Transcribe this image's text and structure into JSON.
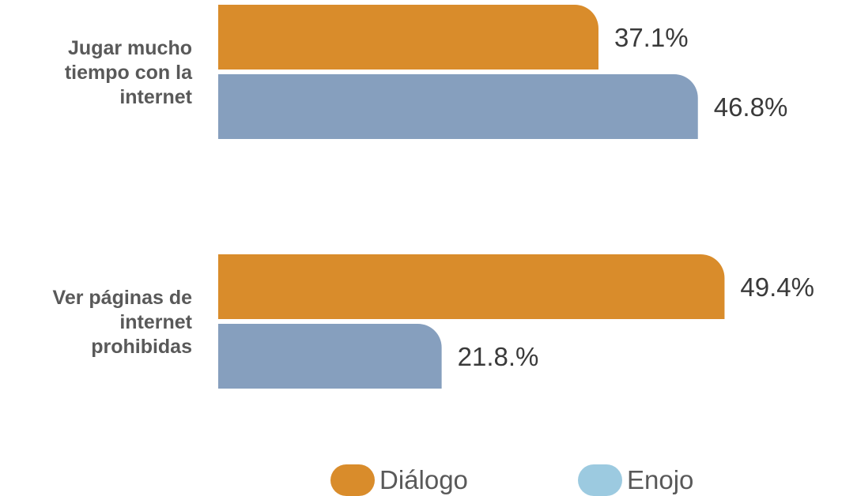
{
  "chart_data": {
    "type": "bar",
    "orientation": "horizontal",
    "categories": [
      [
        "Jugar mucho",
        "tiempo con la",
        "internet"
      ],
      [
        "Ver páginas  de",
        "internet",
        "prohibidas"
      ]
    ],
    "series": [
      {
        "name": "Diálogo",
        "color": "#d98c2b",
        "values": [
          37.1,
          49.4
        ],
        "labels": [
          "37.1%",
          "49.4%"
        ]
      },
      {
        "name": "Enojo",
        "color": "#869fbe",
        "legend_color": "#9ccae0",
        "values": [
          46.8,
          21.8
        ],
        "labels": [
          "46.8%",
          "21.8.%"
        ]
      }
    ],
    "xlim": [
      0,
      56
    ],
    "legend_position": "bottom-center",
    "grid": false
  }
}
